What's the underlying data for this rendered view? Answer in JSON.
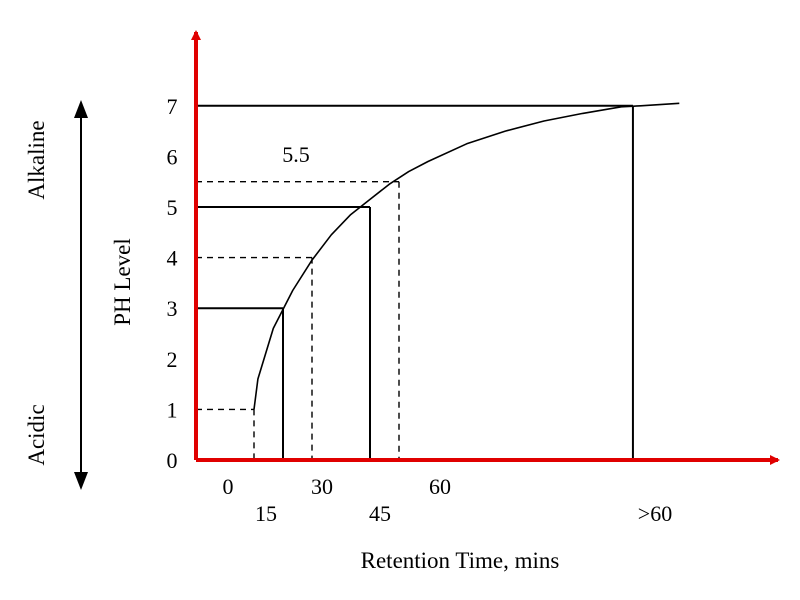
{
  "chart_data": {
    "type": "line",
    "title": "",
    "xlabel": "Retention Time, mins",
    "ylabel": "PH Level",
    "y_ticks": [
      "0",
      "1",
      "2",
      "3",
      "4",
      "5",
      "6",
      "7"
    ],
    "x_tick_labels_upper": [
      "0",
      "30",
      "60"
    ],
    "x_tick_labels_lower": [
      "15",
      "45",
      ">60"
    ],
    "annotation": "5.5",
    "side_arrow": {
      "top_label": "Alkaline",
      "bottom_label": "Acidic"
    },
    "curve": {
      "x": [
        15,
        16,
        20,
        25,
        30,
        35,
        40,
        45,
        50,
        55,
        60,
        70,
        80,
        90,
        100,
        110,
        115,
        125
      ],
      "y": [
        1.0,
        1.6,
        2.6,
        3.35,
        3.95,
        4.45,
        4.85,
        5.15,
        5.45,
        5.7,
        5.9,
        6.25,
        6.5,
        6.7,
        6.85,
        6.98,
        7.0,
        7.05
      ]
    },
    "solid_guides": [
      {
        "x": 22.5,
        "y": 3
      },
      {
        "x": 45,
        "y": 5
      },
      {
        "x": 113,
        "y": 7
      }
    ],
    "dashed_guides": [
      {
        "x": 15,
        "y": 1
      },
      {
        "x": 30,
        "y": 4
      },
      {
        "x": 52.5,
        "y": 5.5
      }
    ],
    "colors": {
      "axes": "#e00000",
      "lines": "#000000"
    }
  }
}
